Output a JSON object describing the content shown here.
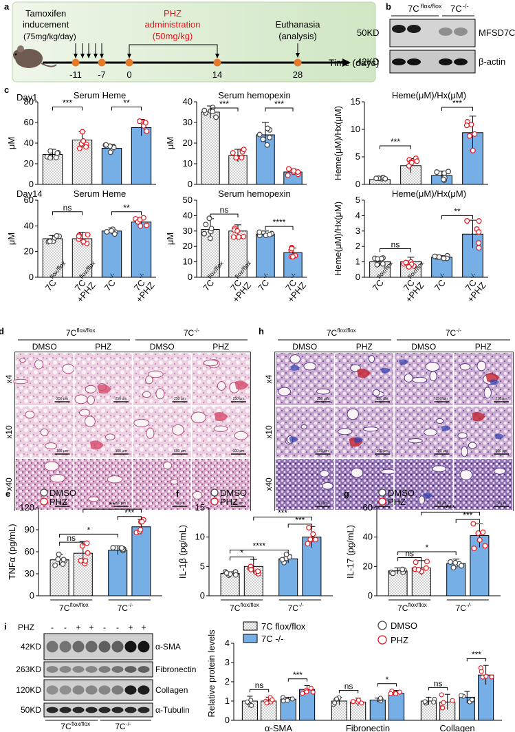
{
  "panels": {
    "a": {
      "letter": "a",
      "tamoxifen_label": [
        "Tamoxifen",
        "inducement",
        "(75mg/kg/day)"
      ],
      "phz_label": [
        "PHZ",
        "administration",
        "(50mg/kg)"
      ],
      "euth_label": [
        "Euthanasia",
        "(analysis)"
      ],
      "axis_title": "Time (days)",
      "ticks": [
        "-11",
        "-7",
        "0",
        "14",
        "28"
      ],
      "phz_color": "#e8141b",
      "dot_color": "#e57a2b",
      "bg_color": "#d9ecd0"
    },
    "b": {
      "letter": "b",
      "col_labels": [
        "7C",
        "flox/flox",
        "7C",
        "-/-"
      ],
      "mw": [
        "50KD",
        "42KD"
      ],
      "proteins": [
        "MFSD7C",
        "β-actin"
      ]
    },
    "c": {
      "letter": "c",
      "row1_day": "Day1",
      "row2_day": "Day14",
      "xcats": [
        [
          "7C",
          "flox/flox",
          ""
        ],
        [
          "7C",
          "flox/flox",
          "+PHZ"
        ],
        [
          "7C",
          "-/-",
          ""
        ],
        [
          "7C",
          "-/-",
          "+PHZ"
        ]
      ]
    },
    "d": {
      "letter": "d",
      "geno": [
        "7C",
        "flox/flox",
        "7C",
        "-/-"
      ],
      "treat": [
        "DMSO",
        "PHZ",
        "DMSO",
        "PHZ"
      ],
      "mags": [
        "x4",
        "x10",
        "x40"
      ],
      "scale": [
        "250 μm",
        "100 μm",
        "50 μm"
      ]
    },
    "h": {
      "letter": "h",
      "geno": [
        "7C",
        "flox/flox",
        "7C",
        "-/-"
      ],
      "treat": [
        "DMSO",
        "PHZ",
        "DMSO",
        "PHZ"
      ],
      "mags": [
        "x4",
        "x10",
        "x40"
      ],
      "scale": [
        "250 μm",
        "100 μm",
        "50 μm"
      ]
    },
    "i_blot": {
      "letter": "i",
      "phz_row_label": "PHZ",
      "phz_signs": [
        "-",
        "-",
        "+",
        "+",
        "-",
        "-",
        "+",
        "+"
      ],
      "mw": [
        "42KD",
        "263KD",
        "120KD",
        "50KD"
      ],
      "proteins": [
        "α-SMA",
        "Fibronectin",
        "Collagen",
        "α-Tubulin"
      ],
      "geno": [
        "7C",
        "flox/flox",
        "7C",
        "-/-"
      ]
    }
  },
  "chart_data": [
    {
      "id": "c1",
      "type": "bar",
      "title": "Serum Heme",
      "ylabel": "μM",
      "ylim": [
        0,
        80
      ],
      "yticks": [
        "0",
        "20",
        "40",
        "60",
        "80"
      ],
      "categories": [
        "7C flox/flox",
        "7C flox/flox +PHZ",
        "7C -/-",
        "7C -/- +PHZ"
      ],
      "values": [
        29,
        43,
        35,
        55
      ],
      "errors": [
        5,
        8,
        4,
        8
      ],
      "sig": [
        {
          "a": 0,
          "b": 1,
          "label": "***",
          "y": 75
        },
        {
          "a": 2,
          "b": 3,
          "label": "**",
          "y": 75
        }
      ]
    },
    {
      "id": "c2",
      "type": "bar",
      "title": "Serum hemopexin",
      "ylabel": "μM",
      "ylim": [
        0,
        40
      ],
      "yticks": [
        "0",
        "10",
        "20",
        "30",
        "40"
      ],
      "categories": [
        "7C flox/flox",
        "7C flox/flox +PHZ",
        "7C -/-",
        "7C -/- +PHZ"
      ],
      "values": [
        35,
        14,
        24,
        6
      ],
      "errors": [
        3,
        3,
        6,
        1.5
      ],
      "sig": [
        {
          "a": 0,
          "b": 1,
          "label": "***",
          "y": 37
        },
        {
          "a": 2,
          "b": 3,
          "label": "***",
          "y": 37
        }
      ]
    },
    {
      "id": "c3",
      "type": "bar",
      "title": "Heme(μM)/Hx(μM)",
      "ylabel": "Heme(μM)/Hx(μM)",
      "ylim": [
        0,
        15
      ],
      "yticks": [
        "0",
        "5",
        "10",
        "15"
      ],
      "categories": [
        "7C flox/flox",
        "7C flox/flox +PHZ",
        "7C -/-",
        "7C -/- +PHZ"
      ],
      "values": [
        0.9,
        3.4,
        1.6,
        9.4
      ],
      "errors": [
        0.3,
        1.3,
        0.8,
        3.0
      ],
      "sig": [
        {
          "a": 0,
          "b": 1,
          "label": "***",
          "y": 7
        },
        {
          "a": 2,
          "b": 3,
          "label": "***",
          "y": 14
        }
      ]
    },
    {
      "id": "c4",
      "type": "bar",
      "title": "Serum Heme",
      "ylabel": "μM",
      "ylim": [
        0,
        60
      ],
      "yticks": [
        "0",
        "20",
        "40",
        "60"
      ],
      "categories": [
        "7C flox/flox",
        "7C flox/flox +PHZ",
        "7C -/-",
        "7C -/- +PHZ"
      ],
      "values": [
        30,
        30,
        36,
        43
      ],
      "errors": [
        2.5,
        5,
        2.5,
        3
      ],
      "sig": [
        {
          "a": 0,
          "b": 1,
          "label": "ns",
          "y": 51
        },
        {
          "a": 2,
          "b": 3,
          "label": "**",
          "y": 51
        }
      ]
    },
    {
      "id": "c5",
      "type": "bar",
      "title": "Serum hemopexin",
      "ylabel": "μM",
      "ylim": [
        0,
        50
      ],
      "yticks": [
        "0",
        "10",
        "20",
        "30",
        "40",
        "50"
      ],
      "categories": [
        "7C flox/flox",
        "7C flox/flox +PHZ",
        "7C -/-",
        "7C -/- +PHZ"
      ],
      "values": [
        31,
        30,
        28,
        16
      ],
      "errors": [
        7,
        4,
        2,
        3
      ],
      "sig": [
        {
          "a": 0,
          "b": 1,
          "label": "ns",
          "y": 41
        },
        {
          "a": 2,
          "b": 3,
          "label": "****",
          "y": 33
        }
      ]
    },
    {
      "id": "c6",
      "type": "bar",
      "title": "Heme(μM)/Hx(μM)",
      "ylabel": "Heme(μM)/Hx(μM)",
      "ylim": [
        0,
        5
      ],
      "yticks": [
        "0",
        "1",
        "2",
        "3",
        "4",
        "5"
      ],
      "categories": [
        "7C flox/flox",
        "7C flox/flox +PHZ",
        "7C -/-",
        "7C -/- +PHZ"
      ],
      "values": [
        1.0,
        1.0,
        1.3,
        2.8
      ],
      "errors": [
        0.3,
        0.3,
        0.1,
        0.9
      ],
      "sig": [
        {
          "a": 0,
          "b": 1,
          "label": "ns",
          "y": 1.85
        },
        {
          "a": 2,
          "b": 3,
          "label": "**",
          "y": 4.0
        }
      ]
    },
    {
      "id": "e",
      "type": "bar",
      "letter": "e",
      "ylabel": "TNFα (pg/mL)",
      "ylim": [
        0,
        120
      ],
      "yticks": [
        "0",
        "30",
        "60",
        "90",
        "120"
      ],
      "groups": [
        "7C flox/flox",
        "7C -/-"
      ],
      "legend": [
        "DMSO",
        "PHZ"
      ],
      "values": [
        49,
        58,
        62,
        94
      ],
      "errors": [
        7,
        16,
        6,
        10
      ],
      "sig": [
        {
          "a": 0,
          "b": 1,
          "label": "ns",
          "y": 73
        },
        {
          "a": 0,
          "b": 2,
          "label": "*",
          "y": 84
        },
        {
          "a": 2,
          "b": 3,
          "label": "***",
          "y": 108
        },
        {
          "a": 1,
          "b": 3,
          "label": "**",
          "y": 118
        }
      ]
    },
    {
      "id": "f",
      "type": "bar",
      "letter": "f",
      "ylabel": "IL-1β (pg/mL)",
      "ylim": [
        0,
        15
      ],
      "yticks": [
        "0",
        "5",
        "10",
        "15"
      ],
      "groups": [
        "7C flox/flox",
        "7C -/-"
      ],
      "legend": [
        "DMSO",
        "PHZ"
      ],
      "values": [
        3.8,
        5.0,
        6.3,
        10.0
      ],
      "errors": [
        0.3,
        1.2,
        0.7,
        1.8
      ],
      "sig": [
        {
          "a": 0,
          "b": 1,
          "label": "*",
          "y": 6.6
        },
        {
          "a": 0,
          "b": 2,
          "label": "****",
          "y": 7.8
        },
        {
          "a": 2,
          "b": 3,
          "label": "***",
          "y": 12.2
        },
        {
          "a": 1,
          "b": 3,
          "label": "***",
          "y": 13.4
        }
      ]
    },
    {
      "id": "g",
      "type": "bar",
      "letter": "g",
      "ylabel": "IL-17 (pg/mL)",
      "ylim": [
        0,
        60
      ],
      "yticks": [
        "0",
        "20",
        "40",
        "60"
      ],
      "groups": [
        "7C flox/flox",
        "7C -/-"
      ],
      "legend": [
        "DMSO",
        "PHZ"
      ],
      "values": [
        17,
        19,
        22,
        41
      ],
      "errors": [
        2,
        5,
        3,
        8
      ],
      "sig": [
        {
          "a": 0,
          "b": 1,
          "label": "ns",
          "y": 26
        },
        {
          "a": 0,
          "b": 2,
          "label": "*",
          "y": 30
        },
        {
          "a": 2,
          "b": 3,
          "label": "***",
          "y": 52
        },
        {
          "a": 1,
          "b": 3,
          "label": "***",
          "y": 57
        }
      ]
    },
    {
      "id": "i",
      "type": "bar",
      "ylabel": "Relative protein levels",
      "ylim": [
        0,
        4
      ],
      "yticks": [
        "0",
        "1",
        "2",
        "3",
        "4"
      ],
      "categories": [
        "α-SMA",
        "Fibronectin",
        "Collagen"
      ],
      "legend_geno": [
        "7C flox/flox",
        "7C -/-"
      ],
      "legend_treat": [
        "DMSO",
        "PHZ"
      ],
      "values": [
        [
          1.0,
          1.0,
          1.1,
          1.6
        ],
        [
          1.0,
          0.95,
          1.05,
          1.4
        ],
        [
          1.0,
          0.95,
          1.2,
          2.35
        ]
      ],
      "errors": [
        [
          0.25,
          0.2,
          0.1,
          0.2
        ],
        [
          0.2,
          0.2,
          0.1,
          0.15
        ],
        [
          0.2,
          0.4,
          0.3,
          0.5
        ]
      ],
      "sig": [
        [
          "ns",
          "***"
        ],
        [
          "ns",
          "*"
        ],
        [
          "ns",
          "***"
        ]
      ]
    }
  ]
}
